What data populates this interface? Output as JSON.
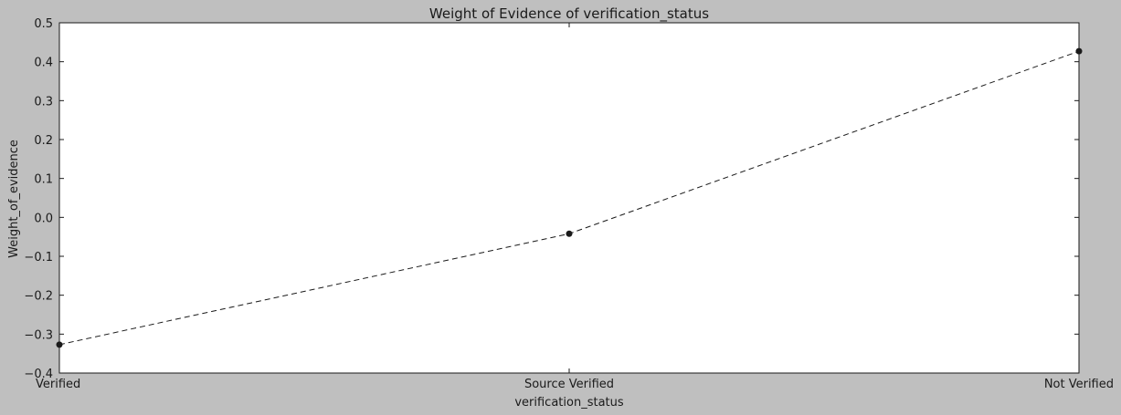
{
  "chart_data": {
    "type": "line",
    "title": "Weight of Evidence of verification_status",
    "xlabel": "verification_status",
    "ylabel": "Weight_of_evidence",
    "categories": [
      "Verified",
      "Source Verified",
      "Not Verified"
    ],
    "values": [
      -0.327,
      -0.042,
      0.427
    ],
    "ylim": [
      -0.4,
      0.5
    ],
    "yticks": [
      "0.5",
      "0.4",
      "0.3",
      "0.2",
      "0.1",
      "0.0",
      "−0.1",
      "−0.2",
      "−0.3",
      "−0.4"
    ],
    "ytick_values": [
      0.5,
      0.4,
      0.3,
      0.2,
      0.1,
      0.0,
      -0.1,
      -0.2,
      -0.3,
      -0.4
    ],
    "line_style": "dashed",
    "marker": "circle",
    "grid": false,
    "colors": {
      "background": "#bfbfbf",
      "plot_area": "#ffffff",
      "line": "#1a1a1a"
    }
  }
}
